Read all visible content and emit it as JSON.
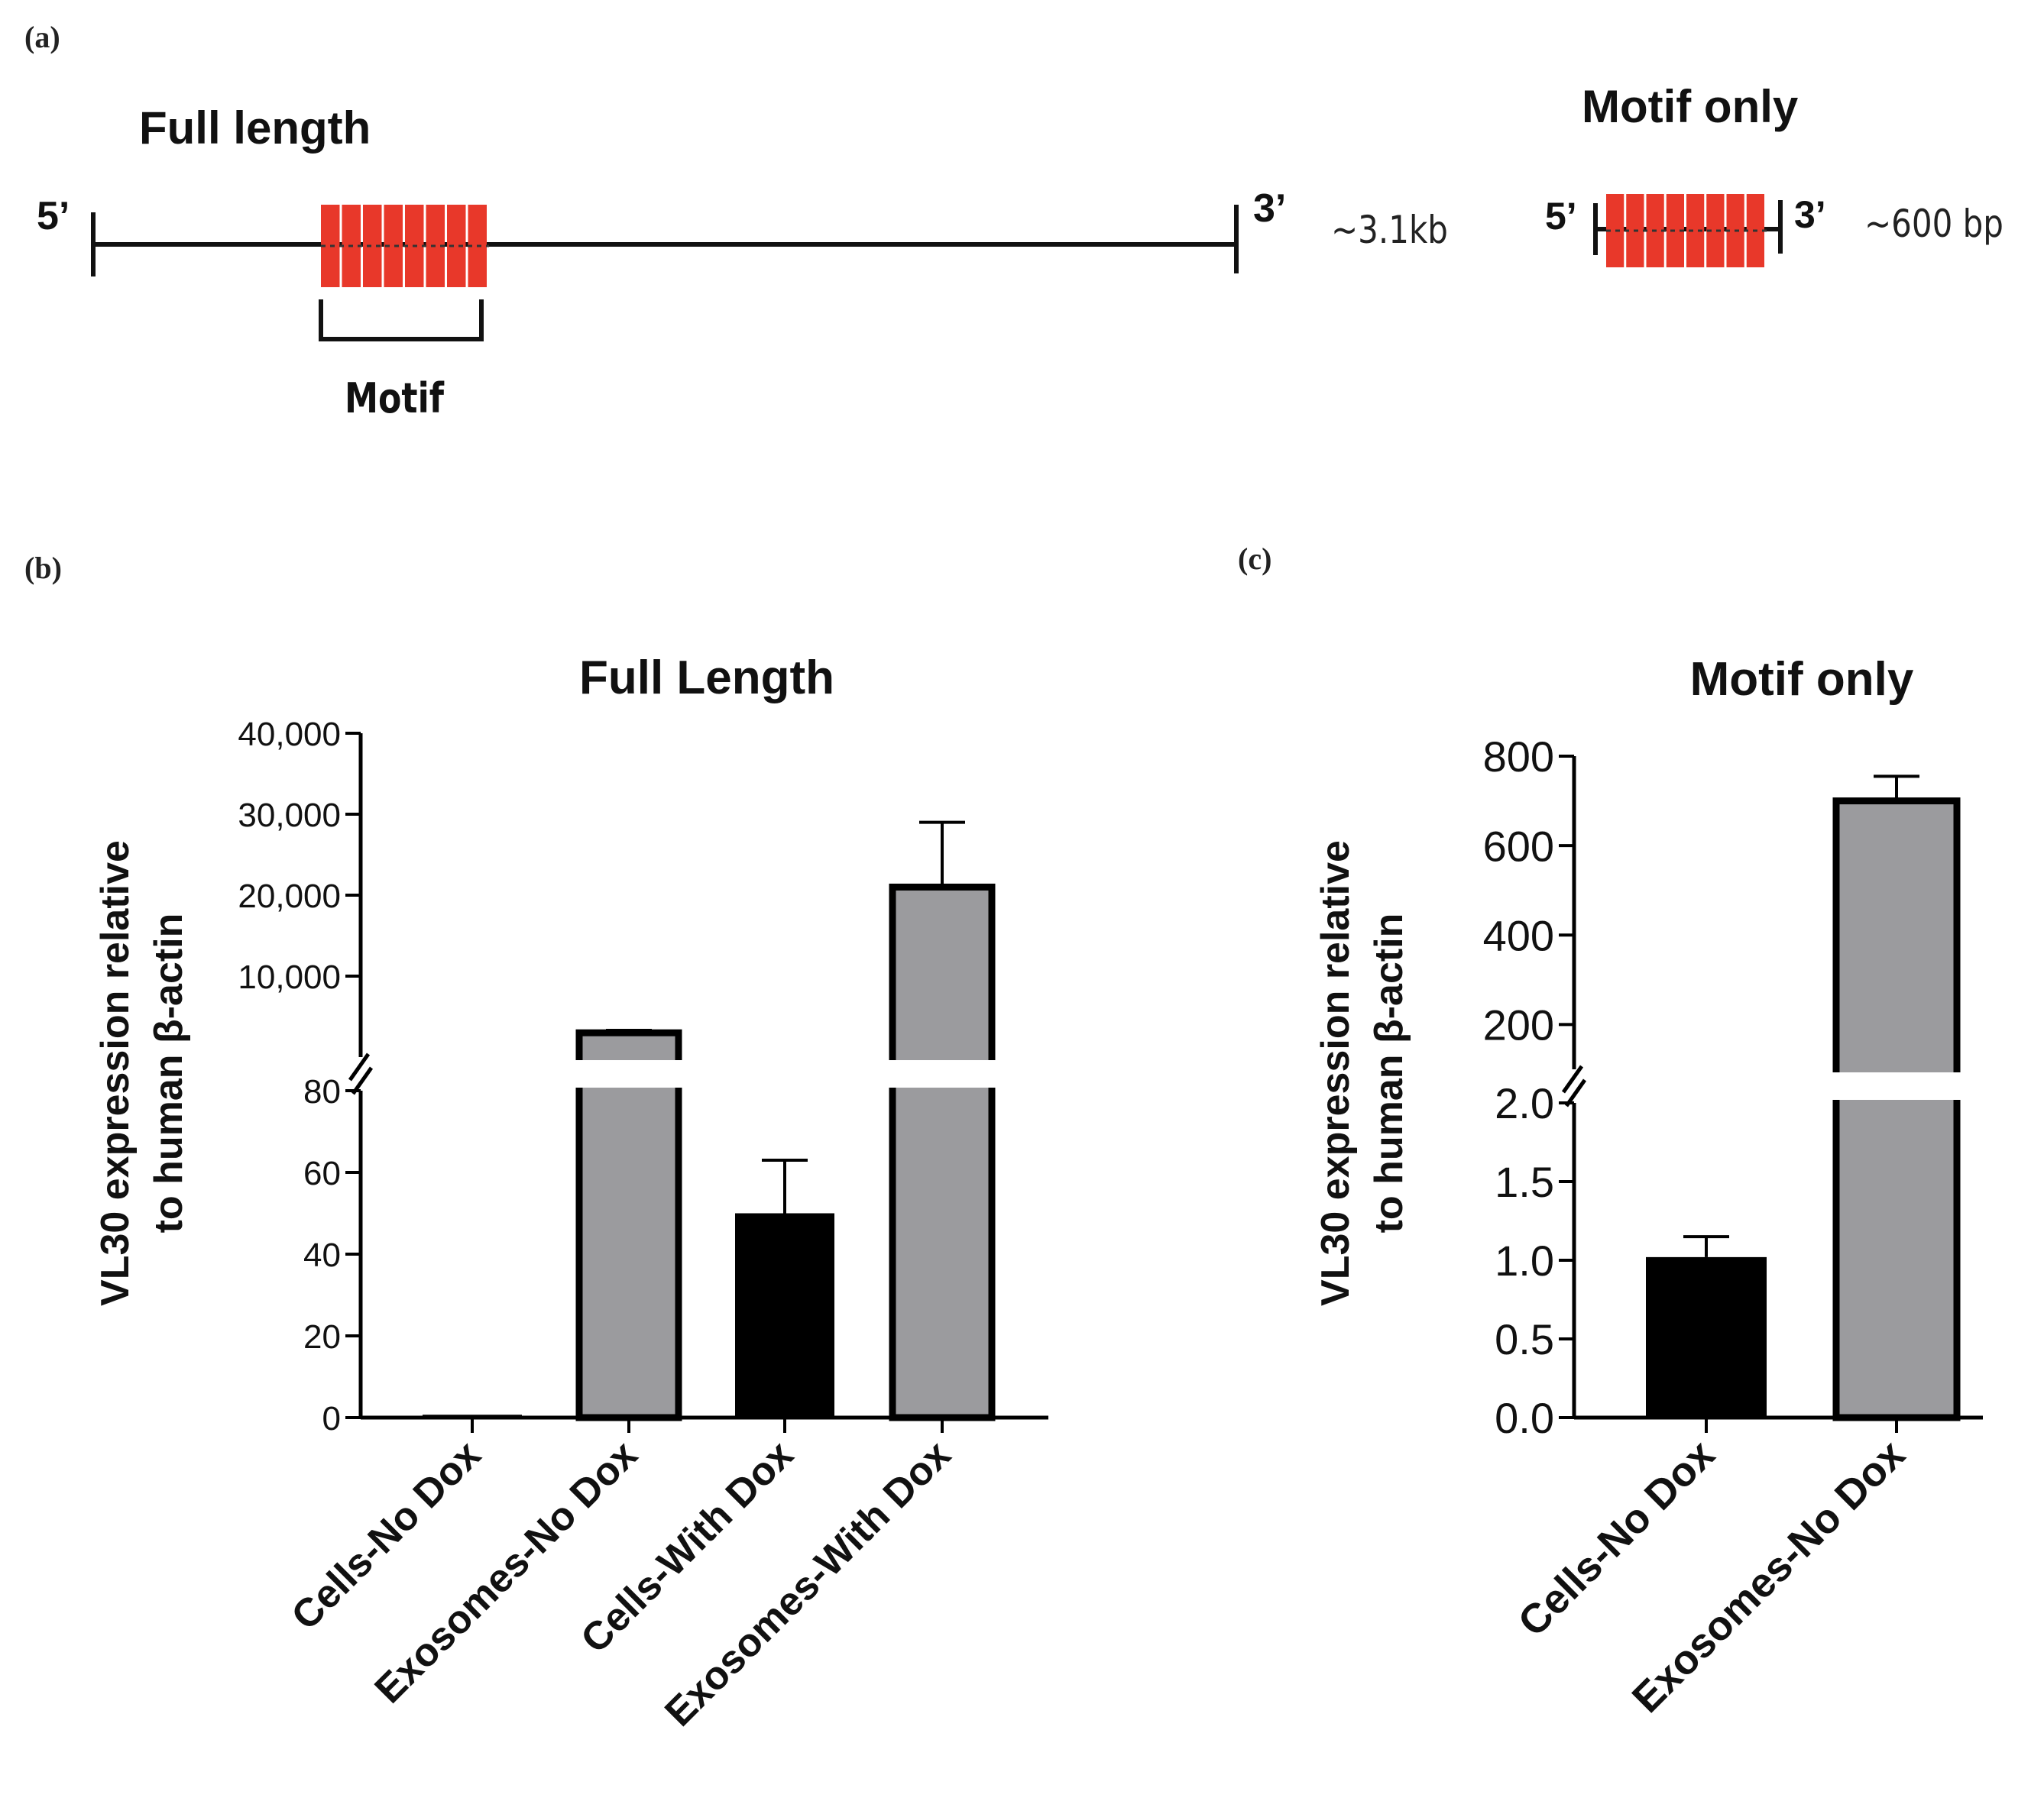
{
  "panel_labels": {
    "a": "(a)",
    "b": "(b)",
    "c": "(c)"
  },
  "diagram": {
    "full_length": {
      "title": "Full length",
      "five_prime": "5’",
      "three_prime": "3’",
      "size": "~3.1kb",
      "motif_label": "Motif",
      "motif_segments": 8
    },
    "motif_only": {
      "title": "Motif only",
      "five_prime": "5’",
      "three_prime": "3’",
      "size": "~600 bp",
      "motif_segments": 8
    },
    "colors": {
      "motif": "#e8382a",
      "line": "#111111"
    }
  },
  "y_axis_label": [
    "VL30 expression relative",
    "to human β-actin"
  ],
  "chart_data": [
    {
      "type": "bar",
      "title": "Full Length",
      "ylabel": "VL30 expression relative to human β-actin",
      "categories": [
        "Cells-No Dox",
        "Exosomes-No Dox",
        "Cells-With Dox",
        "Exosomes-With Dox"
      ],
      "values": [
        0.7,
        3000,
        50,
        21000
      ],
      "errors": [
        0.3,
        300,
        13,
        8000
      ],
      "colors": [
        "#000000",
        "#9b9b9e",
        "#000000",
        "#9b9b9e"
      ],
      "broken_axis": {
        "lower": {
          "range": [
            0,
            80
          ],
          "ticks": [
            0,
            20,
            40,
            60,
            80
          ],
          "tick_labels": [
            "0",
            "20",
            "40",
            "60",
            "80"
          ]
        },
        "upper": {
          "range": [
            0,
            40000
          ],
          "ticks": [
            10000,
            20000,
            30000,
            40000
          ],
          "tick_labels": [
            "10,000",
            "20,000",
            "30,000",
            "40,000"
          ]
        }
      }
    },
    {
      "type": "bar",
      "title": "Motif only",
      "ylabel": "VL30 expression relative to human β-actin",
      "categories": [
        "Cells-No Dox",
        "Exosomes-No Dox"
      ],
      "values": [
        1.02,
        700
      ],
      "errors": [
        0.13,
        55
      ],
      "colors": [
        "#000000",
        "#9b9b9e"
      ],
      "broken_axis": {
        "lower": {
          "range": [
            0,
            2
          ],
          "ticks": [
            0,
            0.5,
            1,
            1.5,
            2
          ],
          "tick_labels": [
            "0.0",
            "0.5",
            "1.0",
            "1.5",
            "2.0"
          ]
        },
        "upper": {
          "range": [
            100,
            800
          ],
          "ticks": [
            200,
            400,
            600,
            800
          ],
          "tick_labels": [
            "200",
            "400",
            "600",
            "800"
          ]
        }
      }
    }
  ]
}
